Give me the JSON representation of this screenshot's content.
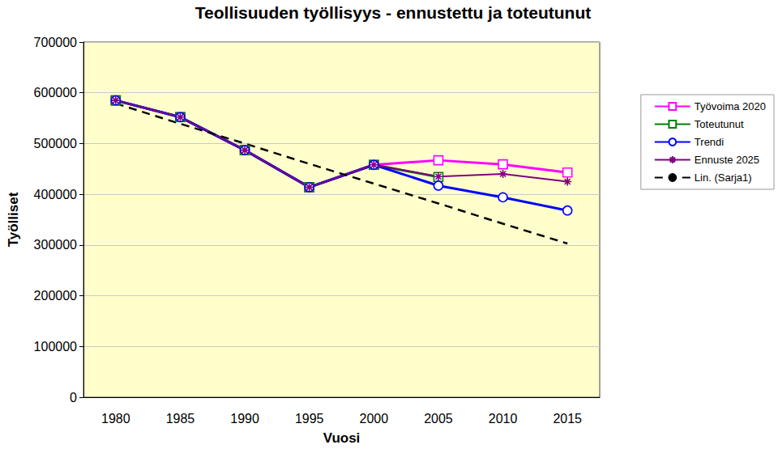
{
  "chart_data": {
    "type": "line",
    "title": "Teollisuuden työllisyys - ennustettu ja toteutunut",
    "x_label": "Vuosi",
    "y_label": "Työlliset",
    "categories": [
      "1980",
      "1985",
      "1990",
      "1995",
      "2000",
      "2005",
      "2010",
      "2015"
    ],
    "ylim": [
      0,
      700000
    ],
    "yticks": [
      0,
      100000,
      200000,
      300000,
      400000,
      500000,
      600000,
      700000
    ],
    "grid": true,
    "legend": "right",
    "series": [
      {
        "name": "Työvoima 2020",
        "color": "#ff00ff",
        "marker": "square",
        "line_style": "solid",
        "values": [
          585000,
          552000,
          487000,
          414000,
          458000,
          467000,
          459000,
          443000
        ]
      },
      {
        "name": "Toteutunut",
        "color": "#008000",
        "marker": "square",
        "line_style": "solid",
        "values": [
          585000,
          552000,
          487000,
          414000,
          458000,
          434000,
          null,
          null
        ]
      },
      {
        "name": "Trendi",
        "color": "#0000ff",
        "marker": "circle",
        "line_style": "solid",
        "values": [
          585000,
          552000,
          487000,
          414000,
          458000,
          417000,
          394000,
          368000
        ]
      },
      {
        "name": "Ennuste 2025",
        "color": "#800080",
        "marker": "asterisk",
        "line_style": "solid",
        "values": [
          585000,
          552000,
          487000,
          414000,
          458000,
          435000,
          440000,
          425000
        ]
      },
      {
        "name": "Lin. (Sarja1)",
        "color": "#000000",
        "marker": "none",
        "line_style": "dashed",
        "values": [
          579000,
          539000,
          500000,
          460000,
          421000,
          382000,
          342000,
          303000
        ]
      }
    ]
  }
}
